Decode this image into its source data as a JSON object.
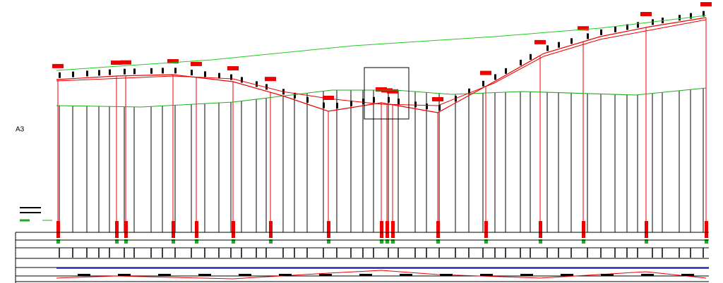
{
  "label": "A3"
}
